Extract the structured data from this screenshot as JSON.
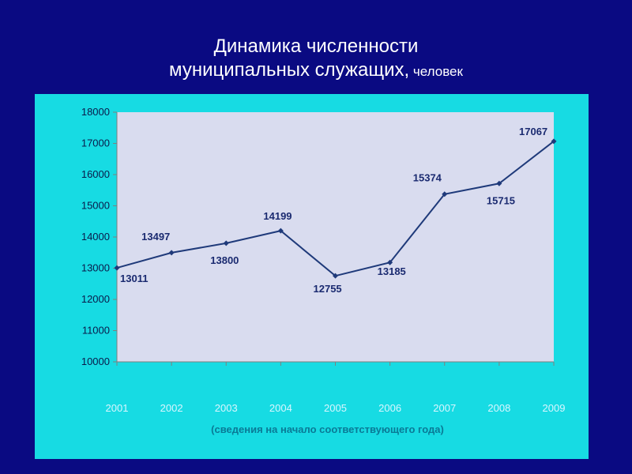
{
  "title": {
    "line1": "Динамика численности",
    "line2": "муниципальных служащих,",
    "unit": " человек"
  },
  "chart_data": {
    "type": "line",
    "title": "Динамика численности муниципальных служащих, человек",
    "categories": [
      "2001",
      "2002",
      "2003",
      "2004",
      "2005",
      "2006",
      "2007",
      "2008",
      "2009"
    ],
    "series": [
      {
        "values": [
          13011,
          13497,
          13800,
          14199,
          12755,
          13185,
          15374,
          15715,
          17067
        ]
      }
    ],
    "data_labels": [
      "13011",
      "13497",
      "13800",
      "14199",
      "12755",
      "13185",
      "15374",
      "15715",
      "17067"
    ],
    "yticks": [
      "10000",
      "11000",
      "12000",
      "13000",
      "14000",
      "15000",
      "16000",
      "17000",
      "18000"
    ],
    "ylim": [
      10000,
      18000
    ],
    "xlabel": "(сведения на начало соответствующего года)",
    "ylabel": "",
    "grid": false,
    "colors": {
      "line": "#1f3a7a",
      "plot_bg": "#d9dcef",
      "panel_bg": "#17dbe3",
      "page_bg": "#0a0a82"
    }
  }
}
